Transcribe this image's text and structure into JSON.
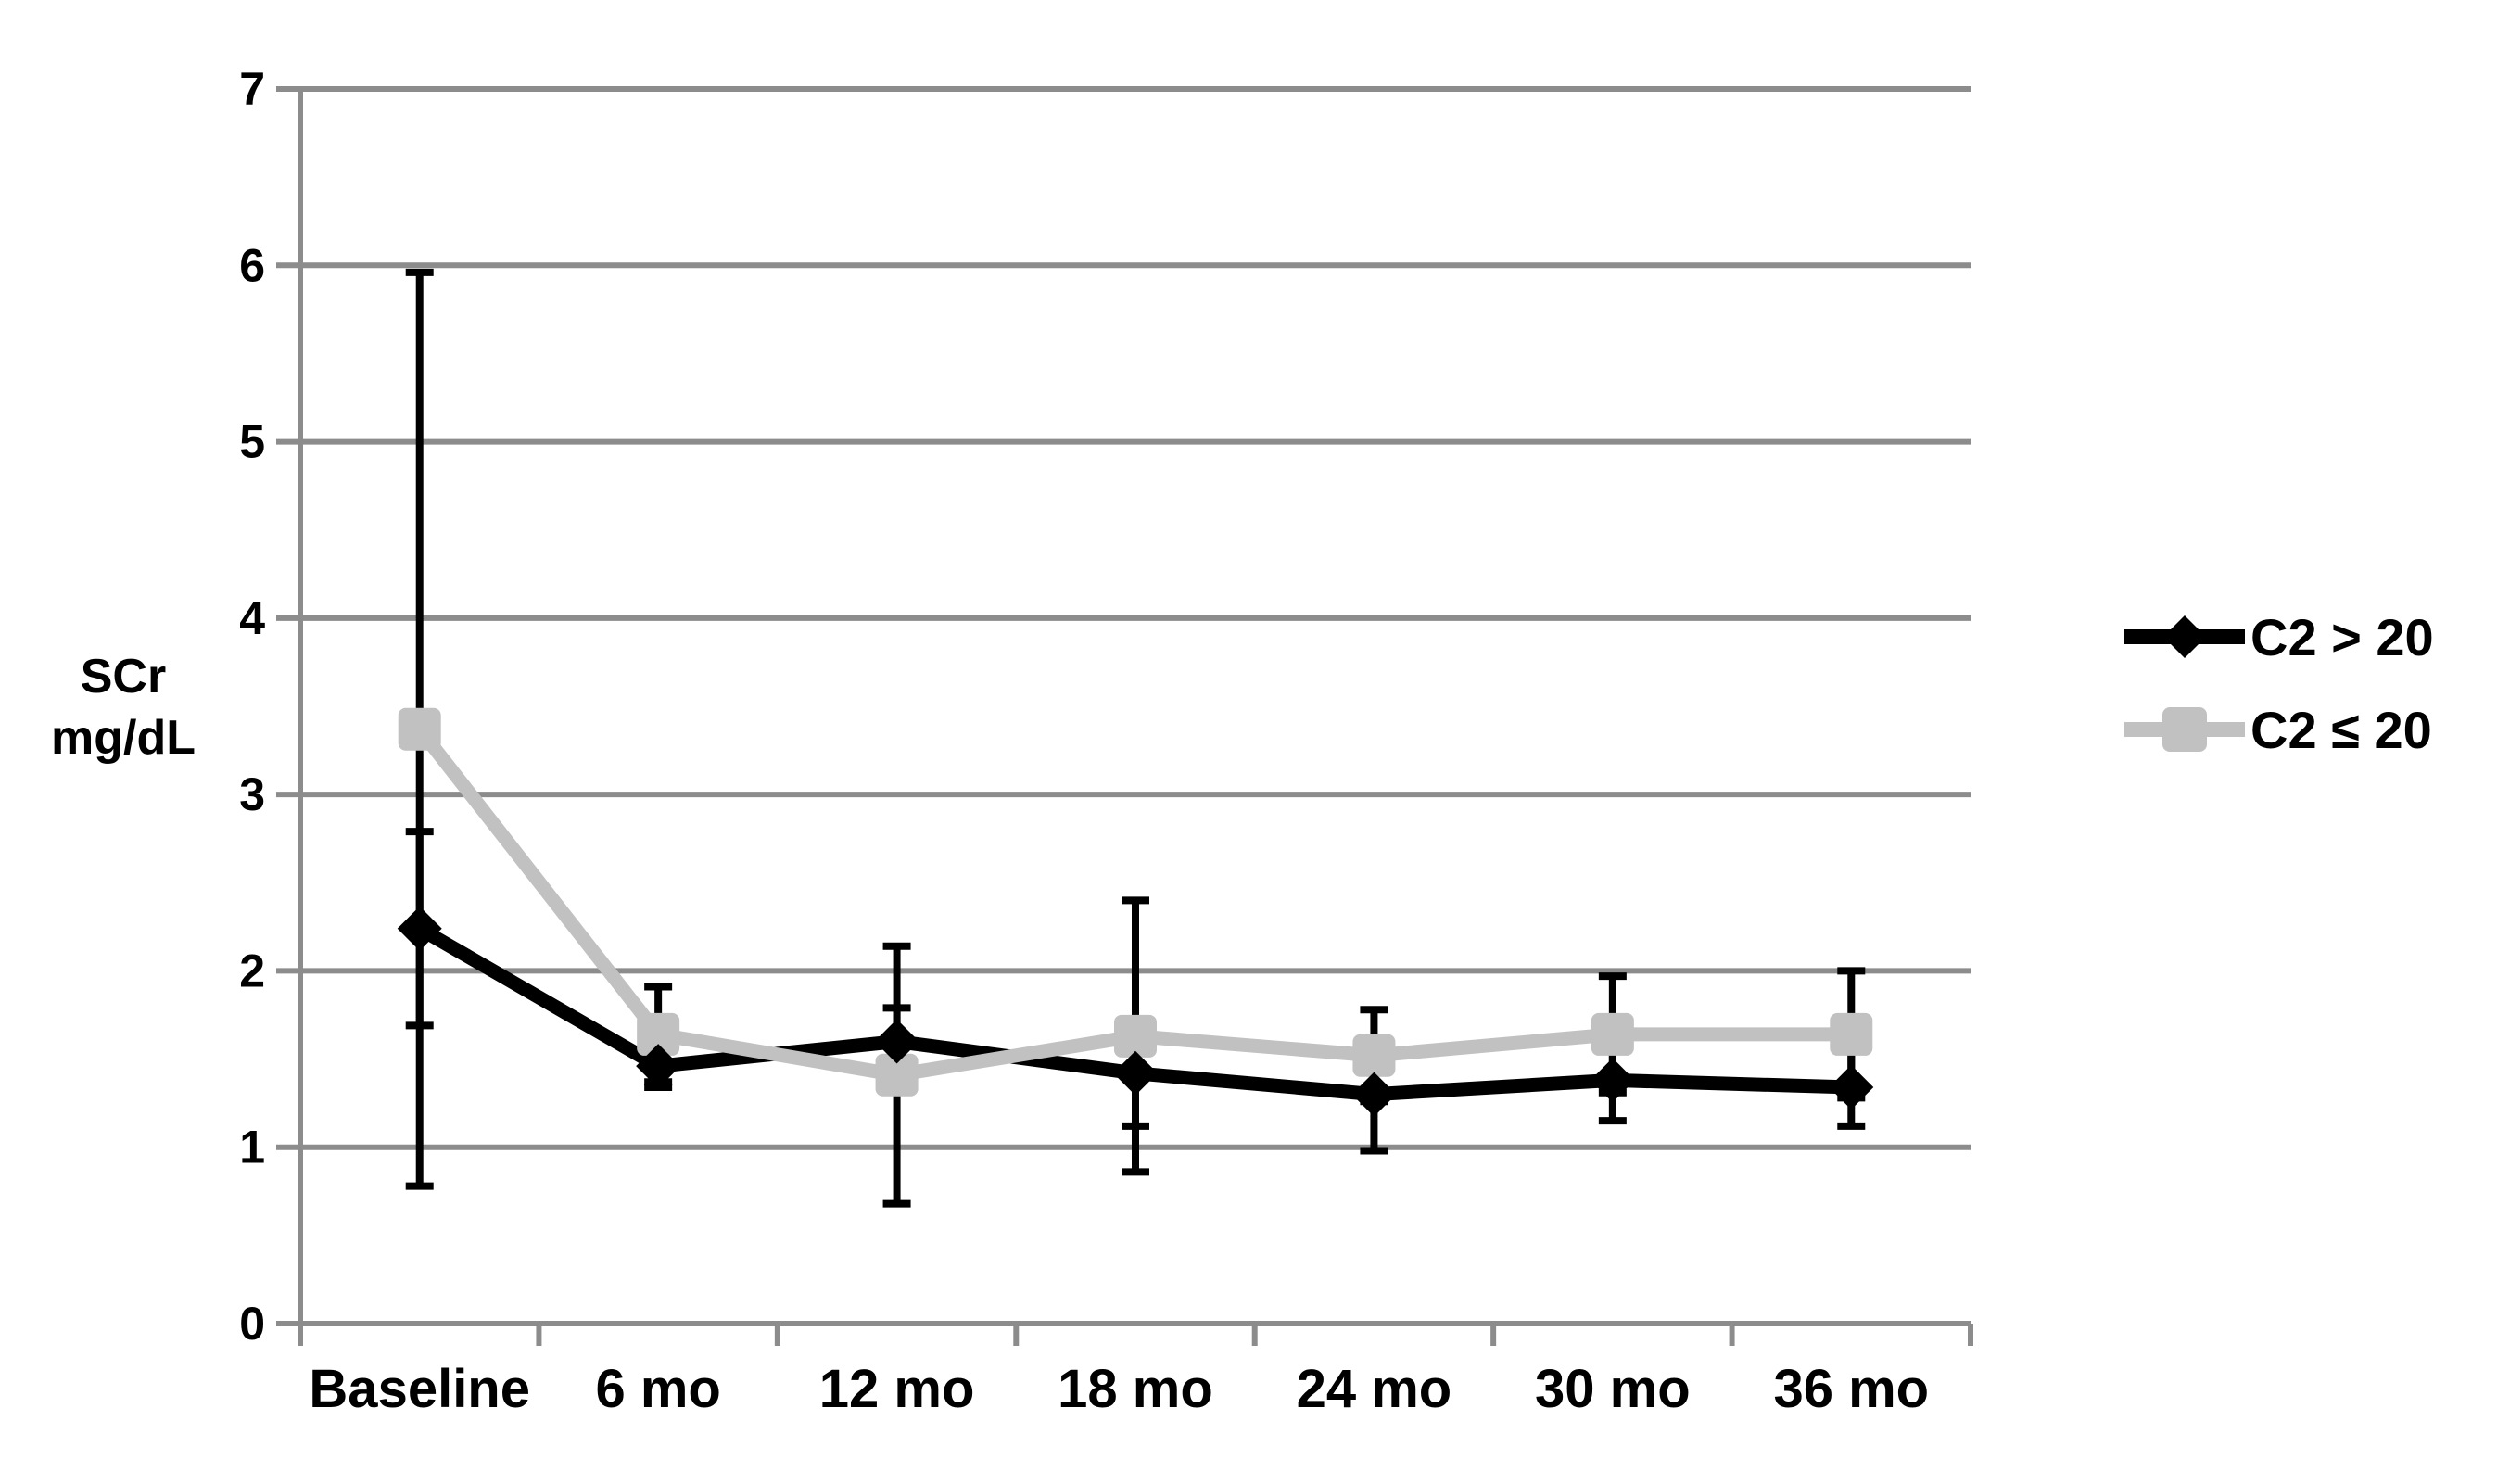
{
  "chart_data": {
    "type": "line",
    "title": "",
    "ylabel_lines": [
      "SCr",
      "mg/dL"
    ],
    "xlabel": "",
    "categories": [
      "Baseline",
      "6 mo",
      "12 mo",
      "18 mo",
      "24 mo",
      "30 mo",
      "36 mo"
    ],
    "y_ticks": [
      0,
      1,
      2,
      3,
      4,
      5,
      6,
      7
    ],
    "ylim": [
      0,
      7
    ],
    "grid": true,
    "legend_position": "right",
    "gridline_color": "#8C8C8C",
    "error_bar_color": "#000000",
    "background_color": "#FFFFFF",
    "series": [
      {
        "name": "C2 > 20",
        "marker": "diamond",
        "color": "#000000",
        "values": [
          2.24,
          1.46,
          1.6,
          1.42,
          1.3,
          1.38,
          1.34
        ],
        "errors": [
          0.55,
          0.12,
          0.19,
          0.3,
          0.32,
          0.23,
          0.22
        ]
      },
      {
        "name": "C2 ≤ 20",
        "marker": "square",
        "color": "#C1C1C1",
        "values": [
          3.37,
          1.64,
          1.41,
          1.63,
          1.52,
          1.64,
          1.64
        ],
        "errors": [
          2.59,
          0.27,
          0.73,
          0.77,
          0.26,
          0.33,
          0.36
        ]
      }
    ]
  }
}
